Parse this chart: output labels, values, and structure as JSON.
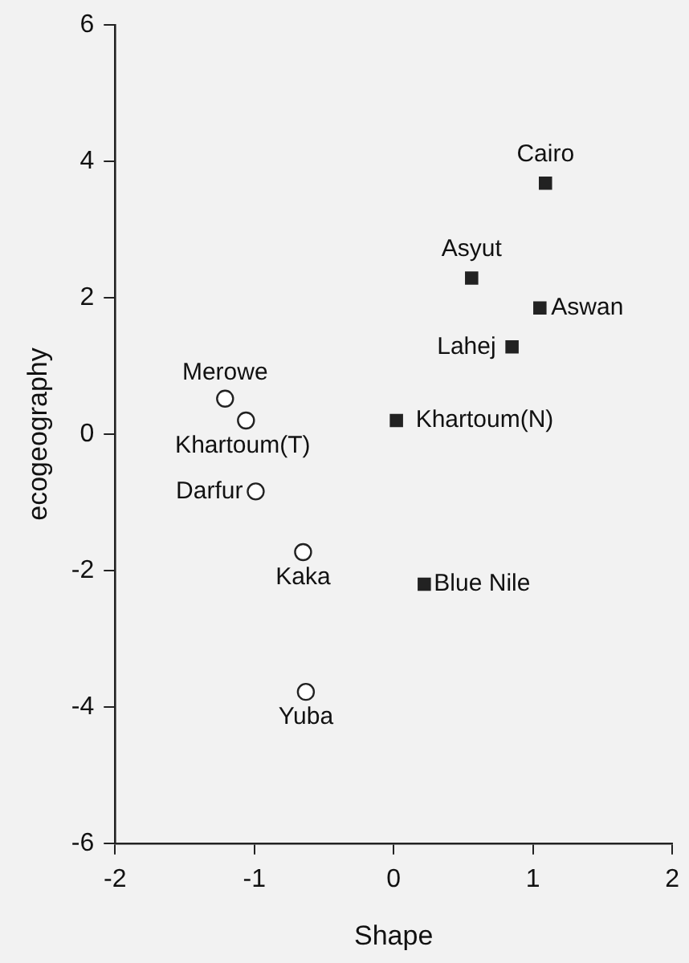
{
  "chart_data": {
    "type": "scatter",
    "xlabel": "Shape",
    "ylabel": "ecogeography",
    "xlim": [
      -2,
      2
    ],
    "xticks": [
      -2,
      -1,
      0,
      1,
      2
    ],
    "ylim": [
      -6,
      6
    ],
    "yticks": [
      -6,
      -4,
      -2,
      0,
      2,
      4,
      6
    ],
    "grid": false,
    "legend": false,
    "series": [
      {
        "color": "#222222",
        "marker": "square",
        "x": [
          1.09,
          0.56,
          1.05,
          0.85,
          0.02,
          0.22
        ],
        "values": [
          3.68,
          2.29,
          1.85,
          1.28,
          0.2,
          -2.2
        ]
      },
      {
        "color": "#222222",
        "marker": "circle",
        "x": [
          -1.21,
          -1.06,
          -0.99,
          -0.65,
          -0.63
        ],
        "values": [
          0.52,
          0.2,
          -0.84,
          -1.73,
          -3.78
        ]
      }
    ],
    "annotations": [
      {
        "text": "Cairo",
        "x": 1.09,
        "y": 3.68
      },
      {
        "text": "Asyut",
        "x": 0.56,
        "y": 2.29
      },
      {
        "text": "Aswan",
        "x": 1.05,
        "y": 1.85
      },
      {
        "text": "Lahej",
        "x": 0.85,
        "y": 1.28
      },
      {
        "text": "Khartoum(N)",
        "x": 0.02,
        "y": 0.2
      },
      {
        "text": "Blue Nile",
        "x": 0.22,
        "y": -2.2
      },
      {
        "text": "Merowe",
        "x": -1.21,
        "y": 0.52
      },
      {
        "text": "Khartoum(T)",
        "x": -1.06,
        "y": 0.2
      },
      {
        "text": "Darfur",
        "x": -0.99,
        "y": -0.84
      },
      {
        "text": "Kaka",
        "x": -0.65,
        "y": -1.73
      },
      {
        "text": "Yuba",
        "x": -0.63,
        "y": -3.78
      }
    ]
  }
}
